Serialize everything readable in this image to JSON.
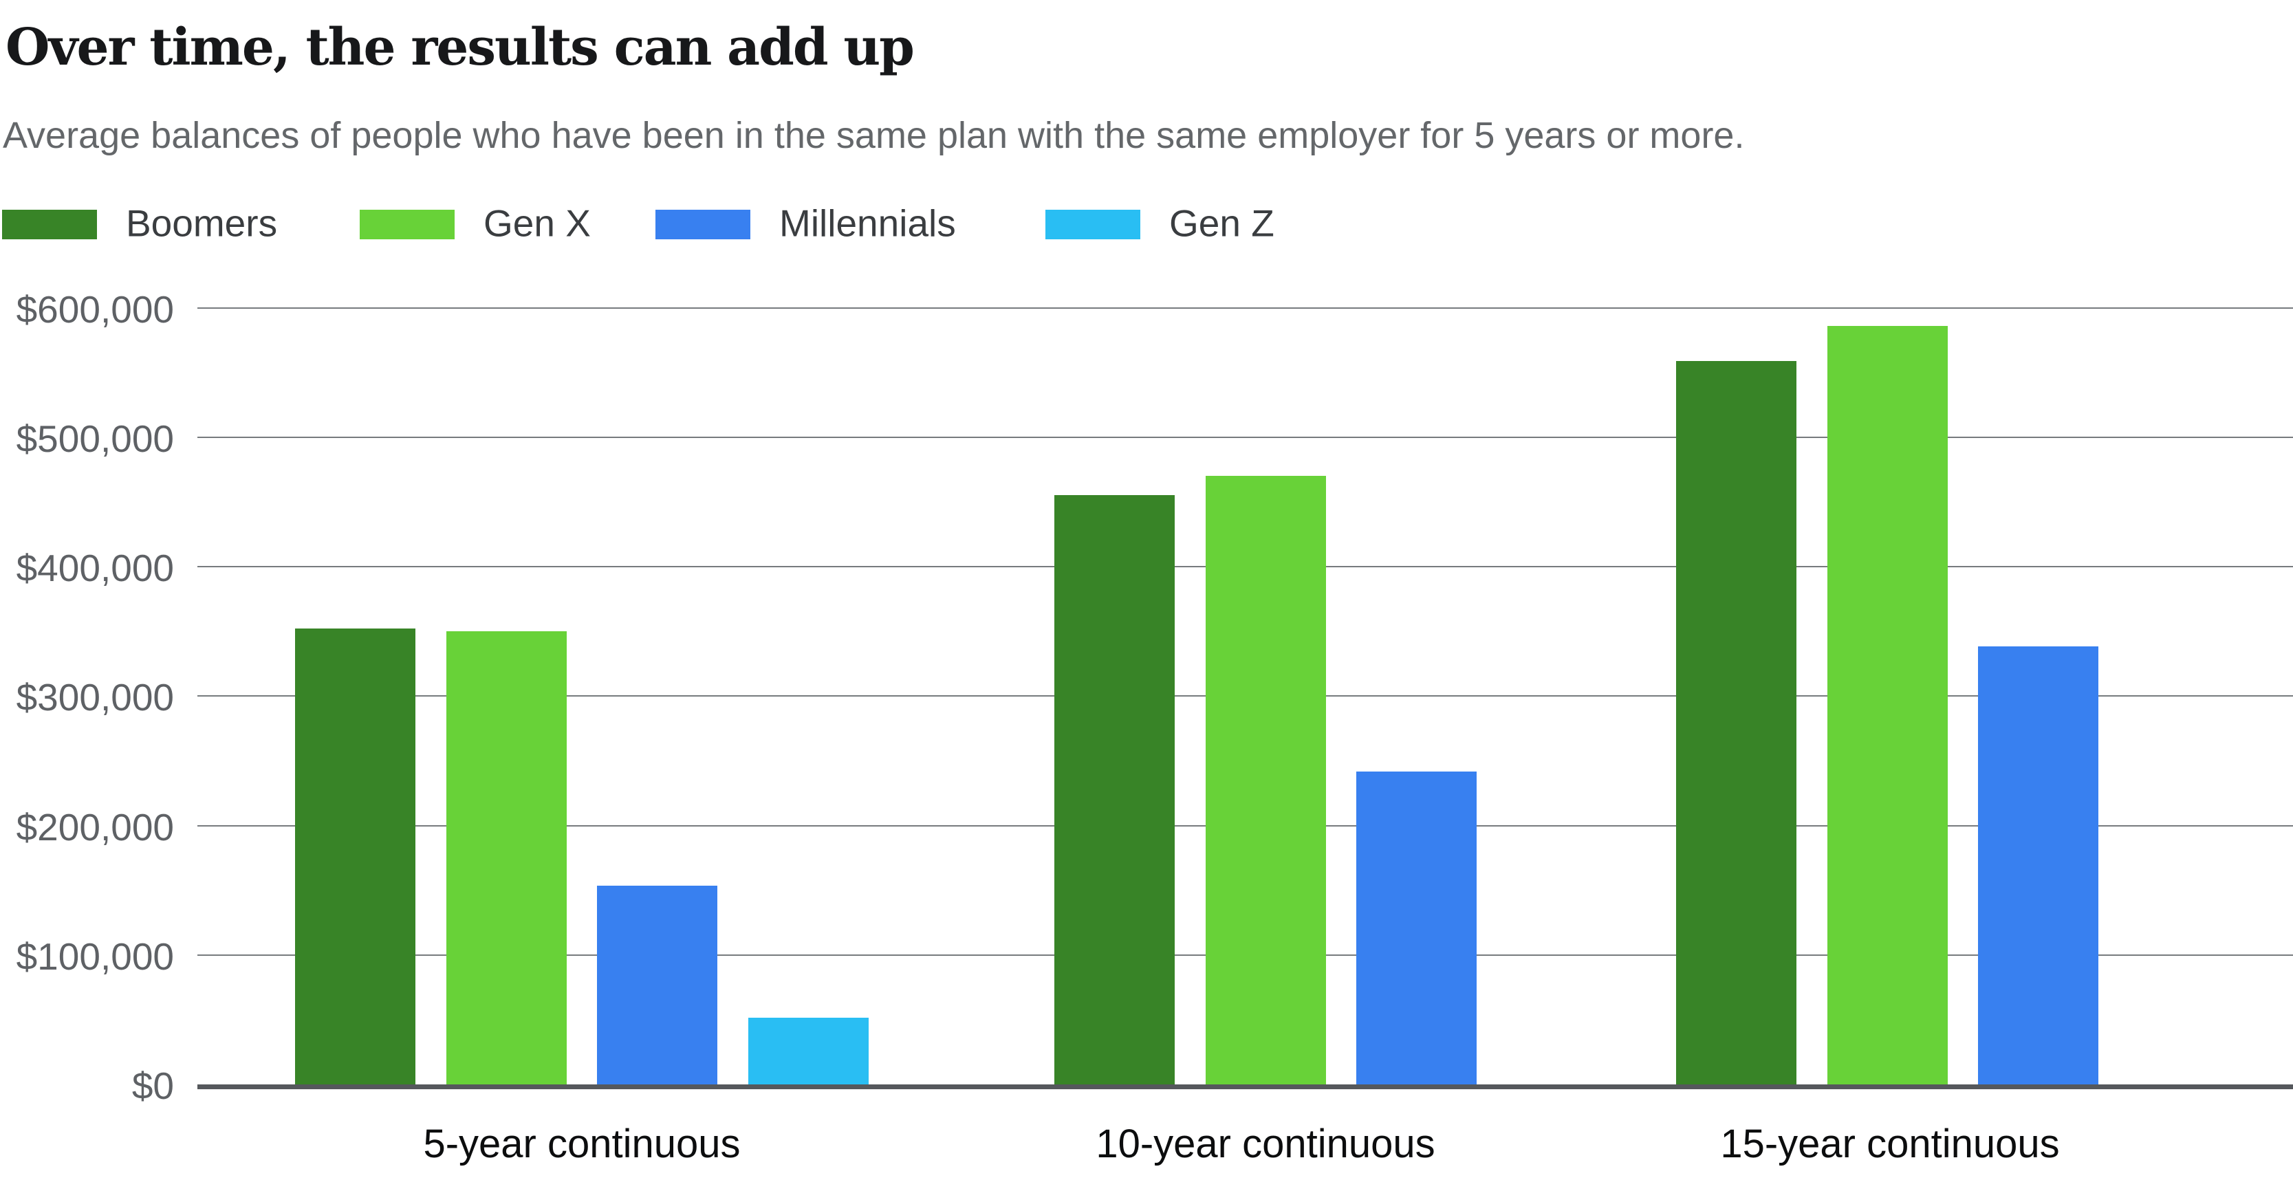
{
  "header": {
    "title": "Over time, the results can add up",
    "subtitle": "Average balances of people who have been in the same plan with the same employer for 5 years or more."
  },
  "chart_data": {
    "type": "bar",
    "title": "Over time, the results can add up",
    "subtitle": "Average balances of people who have been in the same plan with the same employer for 5 years or more.",
    "categories": [
      "5-year continuous",
      "10-year continuous",
      "15-year continuous"
    ],
    "series": [
      {
        "name": "Boomers",
        "color": "#388427",
        "values": [
          352500,
          455500,
          559000
        ]
      },
      {
        "name": "Gen X",
        "color": "#68d238",
        "values": [
          350000,
          470500,
          586000
        ]
      },
      {
        "name": "Millennials",
        "color": "#3880f0",
        "values": [
          153500,
          242000,
          338500
        ]
      },
      {
        "name": "Gen Z",
        "color": "#29bef3",
        "values": [
          51500,
          null,
          null
        ]
      }
    ],
    "yticks": [
      {
        "value": 600000,
        "label": "$600,000"
      },
      {
        "value": 500000,
        "label": "$500,000"
      },
      {
        "value": 400000,
        "label": "$400,000"
      },
      {
        "value": 300000,
        "label": "$300,000"
      },
      {
        "value": 200000,
        "label": "$200,000"
      },
      {
        "value": 100000,
        "label": "$100,000"
      },
      {
        "value": 0,
        "label": "$0"
      }
    ],
    "ylim": [
      0,
      600000
    ],
    "xlabel": "",
    "ylabel": "",
    "grid": true,
    "legend_position": "top-left"
  },
  "colors": {
    "background": "#ffffff",
    "gridline": "#777b7e",
    "axis_line": "#55585c",
    "title_text": "#17181a",
    "subtitle_text": "#64676a",
    "y_label_text": "#5e6165",
    "x_label_text": "#0c0d0e",
    "legend_text": "#3a3d40"
  }
}
